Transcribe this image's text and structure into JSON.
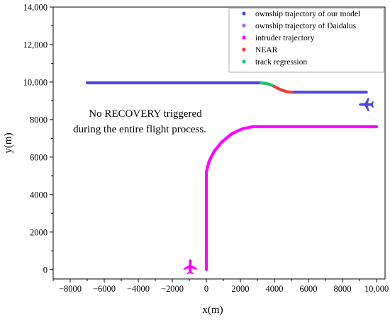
{
  "chart_data": {
    "type": "line",
    "xlabel": "x(m)",
    "ylabel": "y(m)",
    "xlim": [
      -9000,
      10500
    ],
    "ylim": [
      -500,
      14000
    ],
    "x_ticks": [
      -8000,
      -6000,
      -4000,
      -2000,
      0,
      2000,
      4000,
      6000,
      8000,
      10000
    ],
    "x_tick_labels": [
      "−8000",
      "−6000",
      "−4000",
      "−2000",
      "0",
      "2000",
      "4000",
      "6000",
      "8000",
      "10,000"
    ],
    "y_ticks": [
      0,
      2000,
      4000,
      6000,
      8000,
      10000,
      12000,
      14000
    ],
    "y_tick_labels": [
      "0",
      "2000",
      "4000",
      "6000",
      "8000",
      "10,000",
      "12,000",
      "14,000"
    ],
    "grid": false,
    "legend_position": "top-right",
    "annotation": [
      "No RECOVERY triggered",
      "during the entire flight process."
    ],
    "series": [
      {
        "name": "ownship trajectory of our model",
        "color": "#4a4ae0",
        "segments": [
          [
            [
              -7000,
              9960
            ],
            [
              3200,
              9960
            ]
          ],
          [
            [
              5000,
              9460
            ],
            [
              9400,
              9460
            ]
          ]
        ]
      },
      {
        "name": "ownship trajectory of Daidalus",
        "color": "#b060e8",
        "segments": []
      },
      {
        "name": "intruder trajectory",
        "color": "#ff00ff",
        "segments": [
          [
            [
              0,
              0
            ],
            [
              0,
              5200
            ],
            [
              150,
              5750
            ],
            [
              450,
              6300
            ],
            [
              900,
              6800
            ],
            [
              1500,
              7250
            ],
            [
              2100,
              7500
            ],
            [
              2700,
              7620
            ],
            [
              10000,
              7620
            ]
          ]
        ]
      },
      {
        "name": "NEAR",
        "color": "#f03c3c",
        "segments": [
          [
            [
              3850,
              9830
            ],
            [
              4300,
              9620
            ],
            [
              4700,
              9490
            ],
            [
              5000,
              9460
            ]
          ]
        ]
      },
      {
        "name": "track regression",
        "color": "#22c07a",
        "segments": [
          [
            [
              3200,
              9960
            ],
            [
              3550,
              9920
            ],
            [
              3850,
              9830
            ]
          ]
        ]
      }
    ],
    "markers": [
      {
        "icon": "airplane-icon",
        "color": "#4a4ae0",
        "x": 9400,
        "y": 8800,
        "heading": "west"
      },
      {
        "icon": "airplane-icon",
        "color": "#ff00ff",
        "x": -950,
        "y": 150,
        "heading": "north"
      }
    ]
  }
}
